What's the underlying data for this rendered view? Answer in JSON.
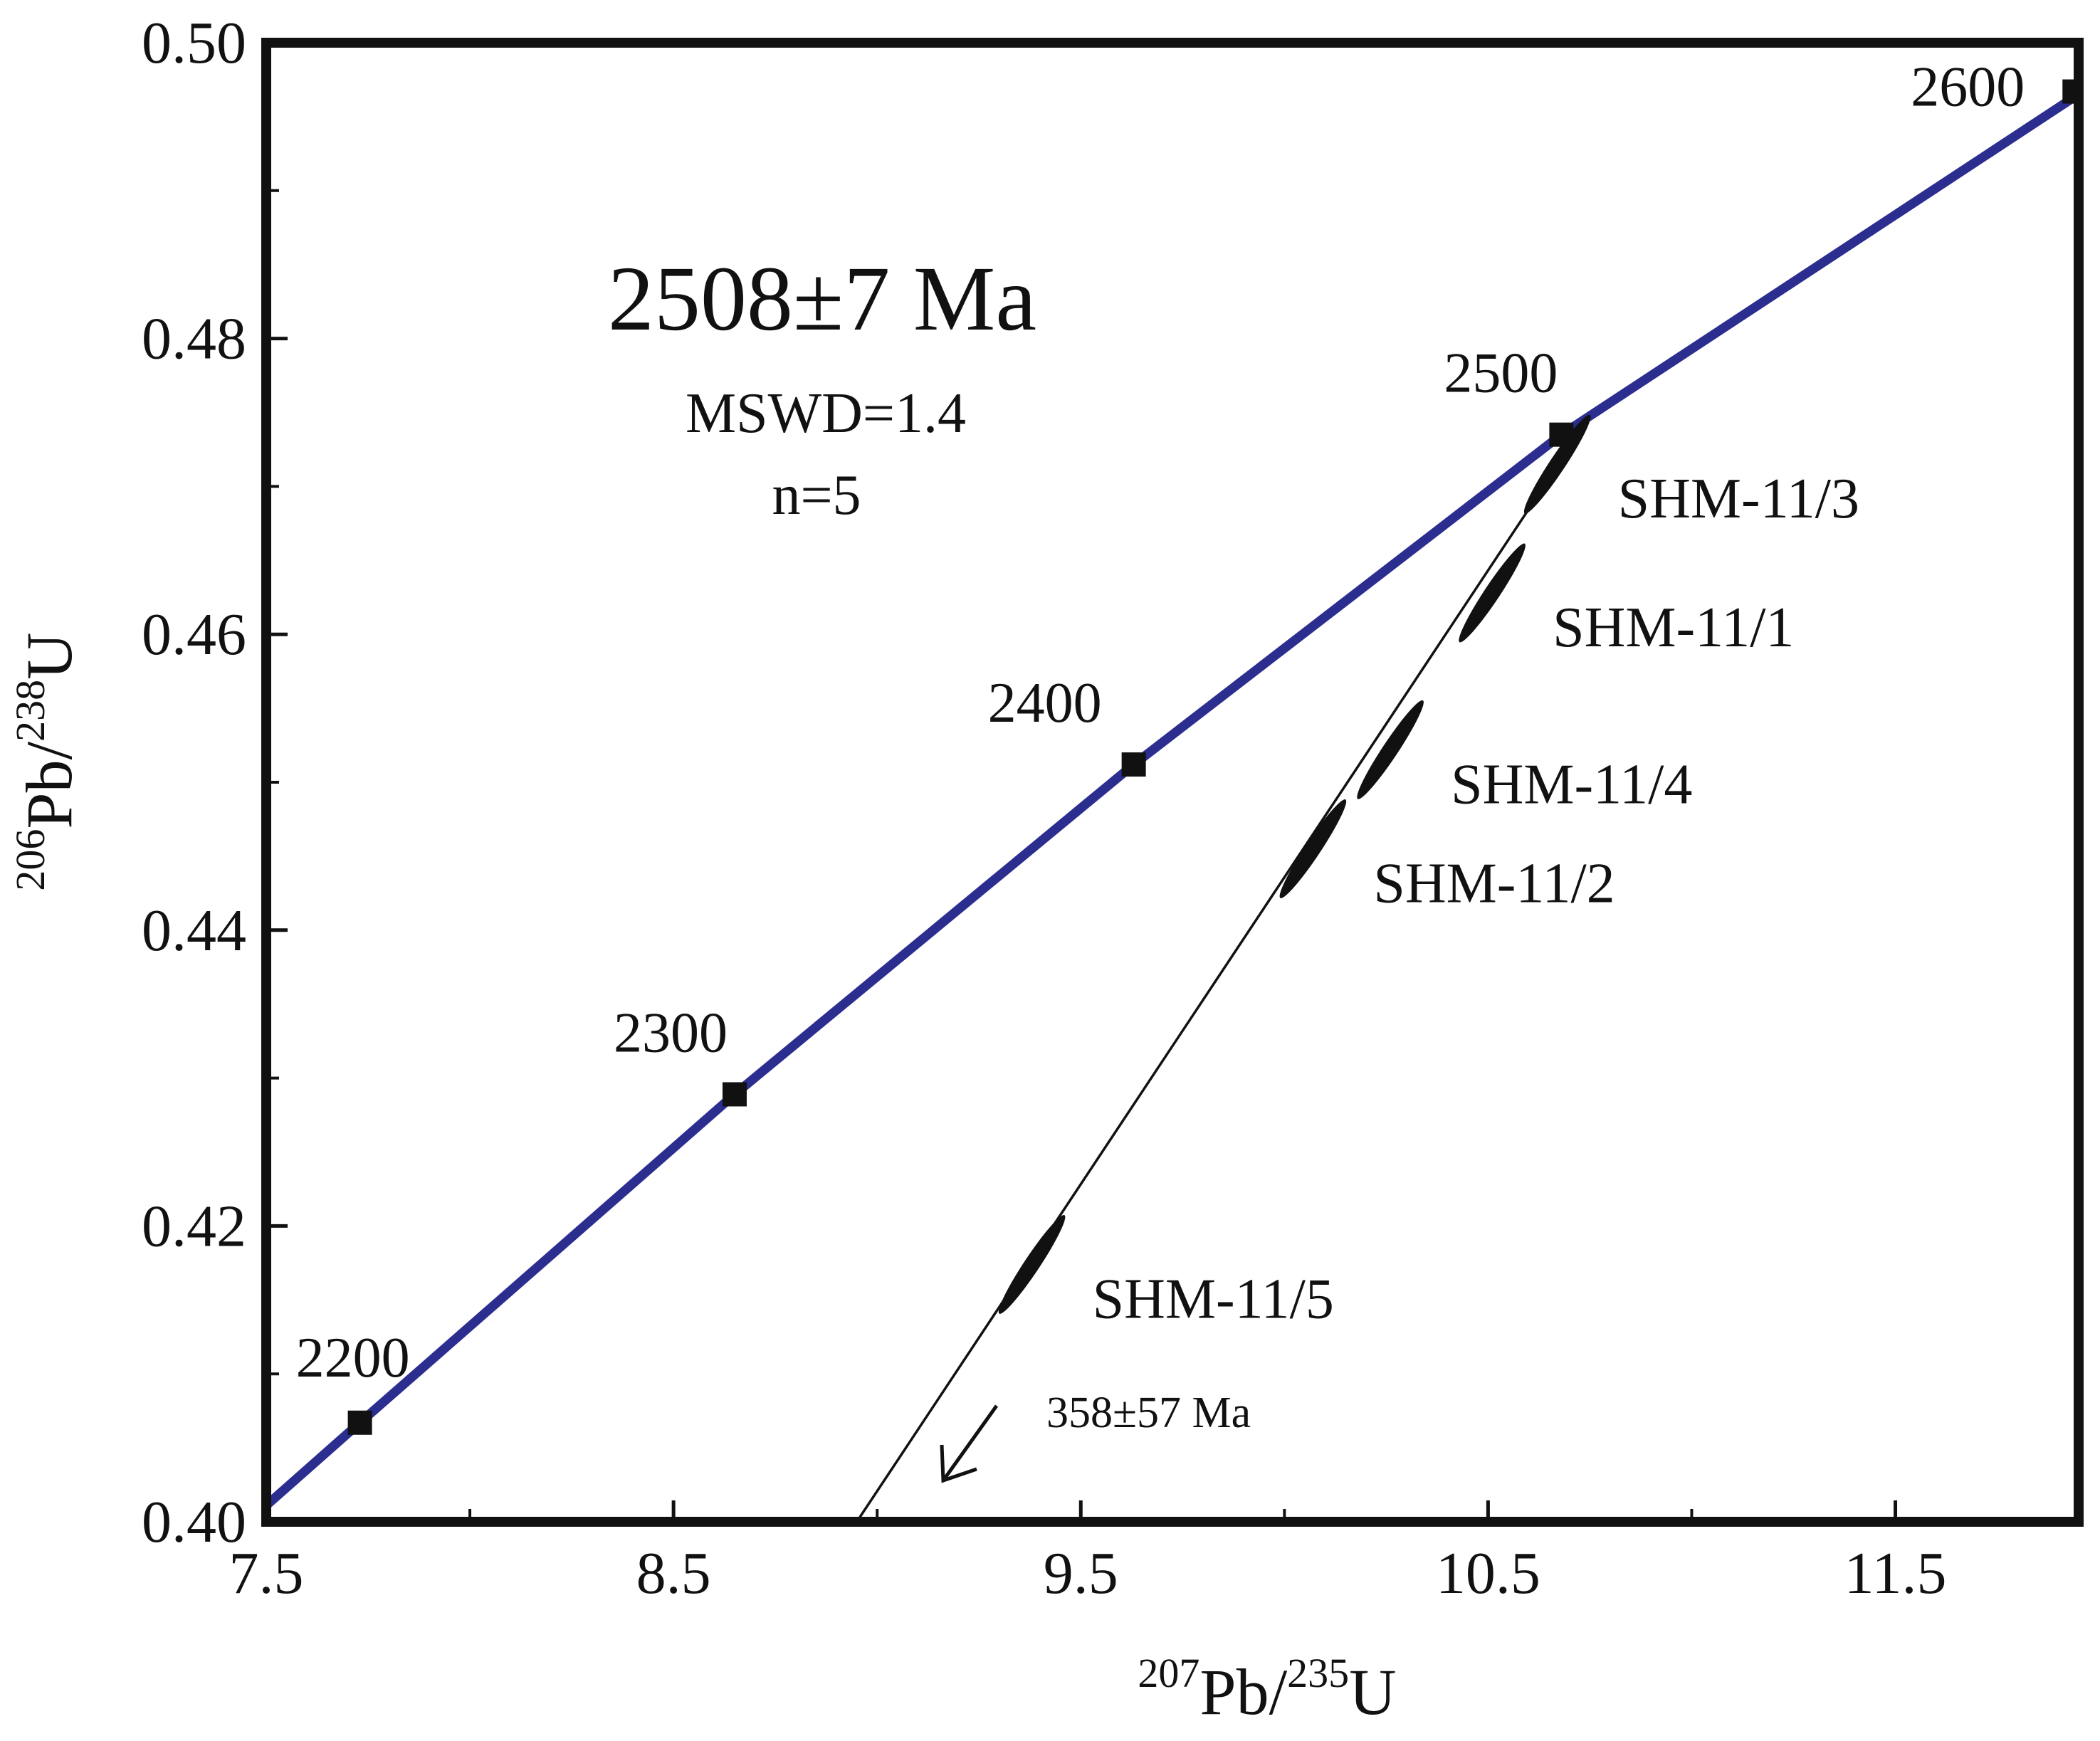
{
  "chart_data": {
    "type": "scatter",
    "subtype": "U-Pb concordia diagram",
    "xlabel": {
      "sup1": "207",
      "base1": "Pb/",
      "sup2": "235",
      "base2": "U"
    },
    "ylabel": {
      "sup1": "206",
      "base1": "Pb/",
      "sup2": "238",
      "base2": "U"
    },
    "xlim": [
      7.5,
      11.95
    ],
    "ylim": [
      0.4,
      0.5
    ],
    "x_ticks": [
      "7.5",
      "8.5",
      "9.5",
      "10.5",
      "11.5"
    ],
    "x_tick_values": [
      7.5,
      8.5,
      9.5,
      10.5,
      11.5
    ],
    "y_ticks": [
      "0.40",
      "0.42",
      "0.44",
      "0.46",
      "0.48",
      "0.50"
    ],
    "y_tick_values": [
      0.4,
      0.42,
      0.44,
      0.46,
      0.48,
      0.5
    ],
    "grid": false,
    "colors": {
      "concordia": "#2b2e8f",
      "discordia": "#111111",
      "frame": "#111111"
    },
    "concordia_curve": [
      {
        "x": 7.5,
        "y": 0.4011
      },
      {
        "x": 7.73,
        "y": 0.4067
      },
      {
        "x": 8.65,
        "y": 0.4289
      },
      {
        "x": 9.63,
        "y": 0.4512
      },
      {
        "x": 10.68,
        "y": 0.4735
      },
      {
        "x": 11.96,
        "y": 0.4967
      }
    ],
    "age_markers": [
      {
        "label": "2200",
        "x": 7.73,
        "y": 0.4067
      },
      {
        "label": "2300",
        "x": 8.65,
        "y": 0.4289
      },
      {
        "label": "2400",
        "x": 9.63,
        "y": 0.4512
      },
      {
        "label": "2500",
        "x": 10.68,
        "y": 0.4735
      },
      {
        "label": "2600",
        "x": 11.94,
        "y": 0.4967
      }
    ],
    "discordia_line": [
      {
        "x": 8.95,
        "y": 0.4
      },
      {
        "x": 10.75,
        "y": 0.4747
      }
    ],
    "spots": [
      {
        "name": "SHM-11/3",
        "x": 10.67,
        "y": 0.4715,
        "rx": 0.07,
        "ry": 0.0035
      },
      {
        "name": "SHM-11/1",
        "x": 10.51,
        "y": 0.4628,
        "rx": 0.07,
        "ry": 0.0035
      },
      {
        "name": "SHM-11/4",
        "x": 10.26,
        "y": 0.4522,
        "rx": 0.07,
        "ry": 0.0035
      },
      {
        "name": "SHM-11/2",
        "x": 10.07,
        "y": 0.4455,
        "rx": 0.07,
        "ry": 0.0035
      },
      {
        "name": "SHM-11/5",
        "x": 9.38,
        "y": 0.4174,
        "rx": 0.07,
        "ry": 0.0035
      }
    ],
    "annotations": {
      "upper_intercept": "2508±7 Ma",
      "mswd": "MSWD=1.4",
      "n": "n=5",
      "lower_intercept": "358±57 Ma"
    }
  }
}
